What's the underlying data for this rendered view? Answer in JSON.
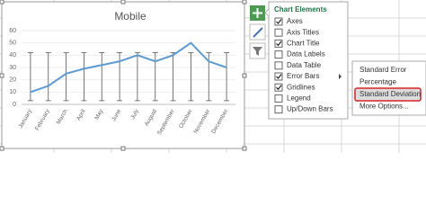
{
  "chart_data": {
    "type": "line",
    "title": "Mobile",
    "categories": [
      "January",
      "February",
      "March",
      "April",
      "May",
      "June",
      "July",
      "August",
      "September",
      "October",
      "November",
      "December"
    ],
    "series": [
      {
        "name": "Mobile",
        "color": "#5b9bd5",
        "values": [
          10,
          15,
          25,
          29,
          32,
          35,
          40,
          35,
          40,
          50,
          35,
          30
        ]
      }
    ],
    "error_bar": {
      "low": 3,
      "high": 42
    },
    "ylim": [
      0,
      60
    ],
    "yticks": [
      0,
      10,
      20,
      30,
      40,
      50,
      60
    ],
    "grid": true
  },
  "chart_elements": {
    "title": "Chart Elements",
    "items": [
      {
        "label": "Axes",
        "checked": true
      },
      {
        "label": "Axis Titles",
        "checked": false
      },
      {
        "label": "Chart Title",
        "checked": true
      },
      {
        "label": "Data Labels",
        "checked": false
      },
      {
        "label": "Data Table",
        "checked": false
      },
      {
        "label": "Error Bars",
        "checked": true
      },
      {
        "label": "Gridlines",
        "checked": true
      },
      {
        "label": "Legend",
        "checked": false
      },
      {
        "label": "Up/Down Bars",
        "checked": false
      }
    ]
  },
  "error_bars_menu": {
    "items": [
      "Standard Error",
      "Percentage",
      "Standard Deviation",
      "More Options..."
    ],
    "selected": 2
  }
}
